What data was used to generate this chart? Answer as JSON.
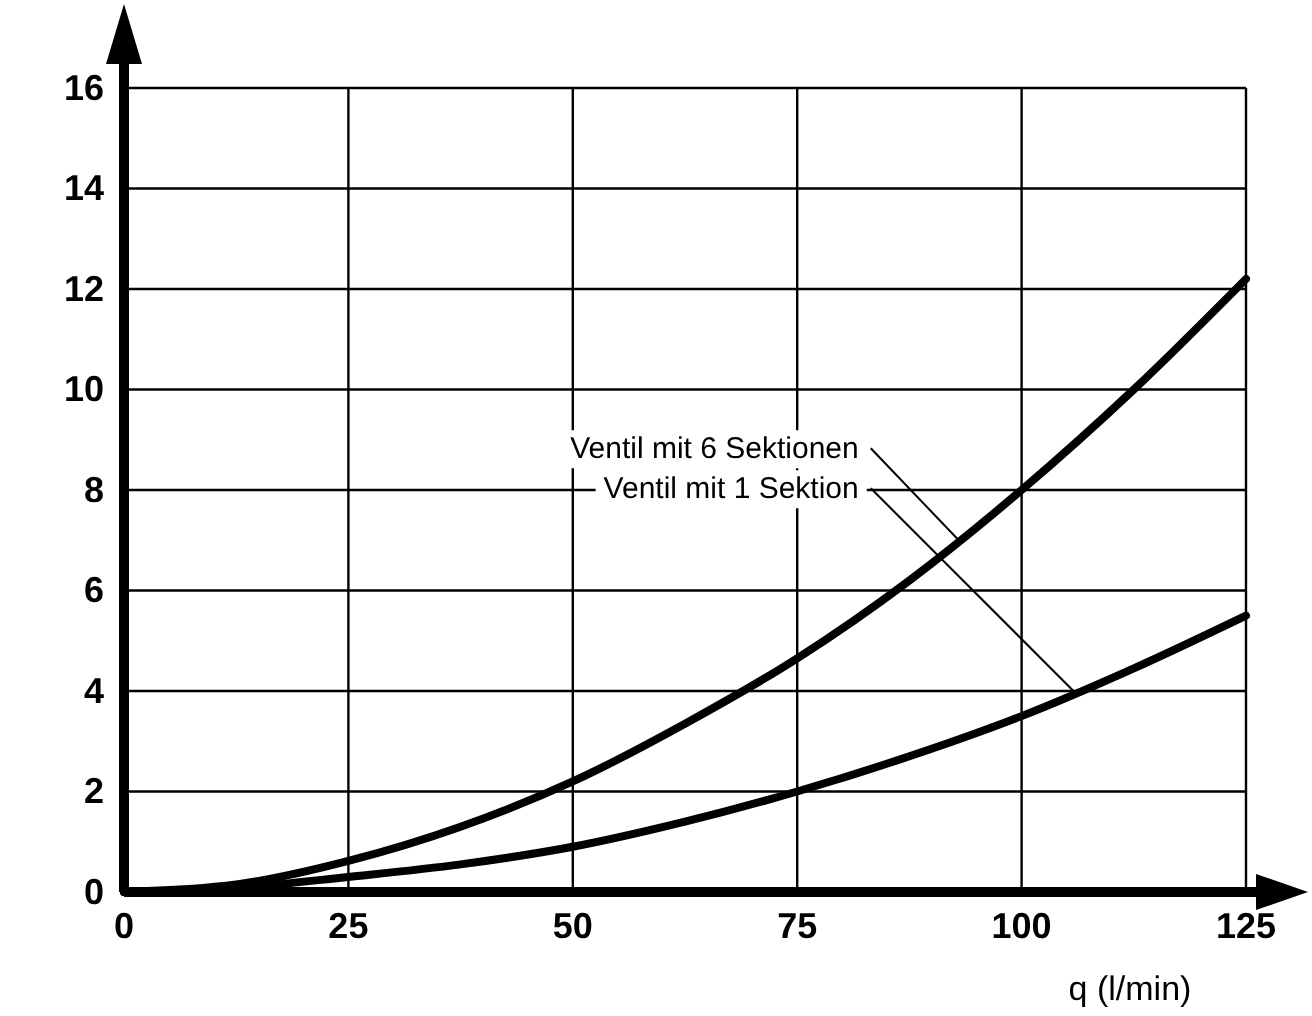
{
  "chart_data": {
    "type": "line",
    "xlabel": "q (l/min)",
    "x": [
      0,
      12.5,
      25,
      37.5,
      50,
      62.5,
      75,
      87.5,
      100,
      112.5,
      125
    ],
    "series": [
      {
        "color": "#000000",
        "values": [
          0,
          0.15,
          0.62,
          1.3,
          2.2,
          3.35,
          4.65,
          6.2,
          8.0,
          10.0,
          12.2
        ]
      },
      {
        "color": "#000000",
        "values": [
          0,
          0.08,
          0.3,
          0.55,
          0.9,
          1.4,
          2.0,
          2.7,
          3.5,
          4.45,
          5.5
        ]
      }
    ],
    "xlim": [
      0,
      125
    ],
    "xticks": [
      0,
      25,
      50,
      75,
      100,
      125
    ],
    "ylim": [
      0,
      16
    ],
    "yticks": [
      0,
      2,
      4,
      6,
      8,
      10,
      12,
      14,
      16
    ],
    "grid": true,
    "marker": "none",
    "line_style": "solid",
    "annotations": [
      {
        "text": "Ventil mit 6 Sektionen",
        "x": 93,
        "y": 7.0
      },
      {
        "text": "Ventil mit 1 Sektion",
        "x": 106,
        "y": 3.96
      }
    ]
  }
}
